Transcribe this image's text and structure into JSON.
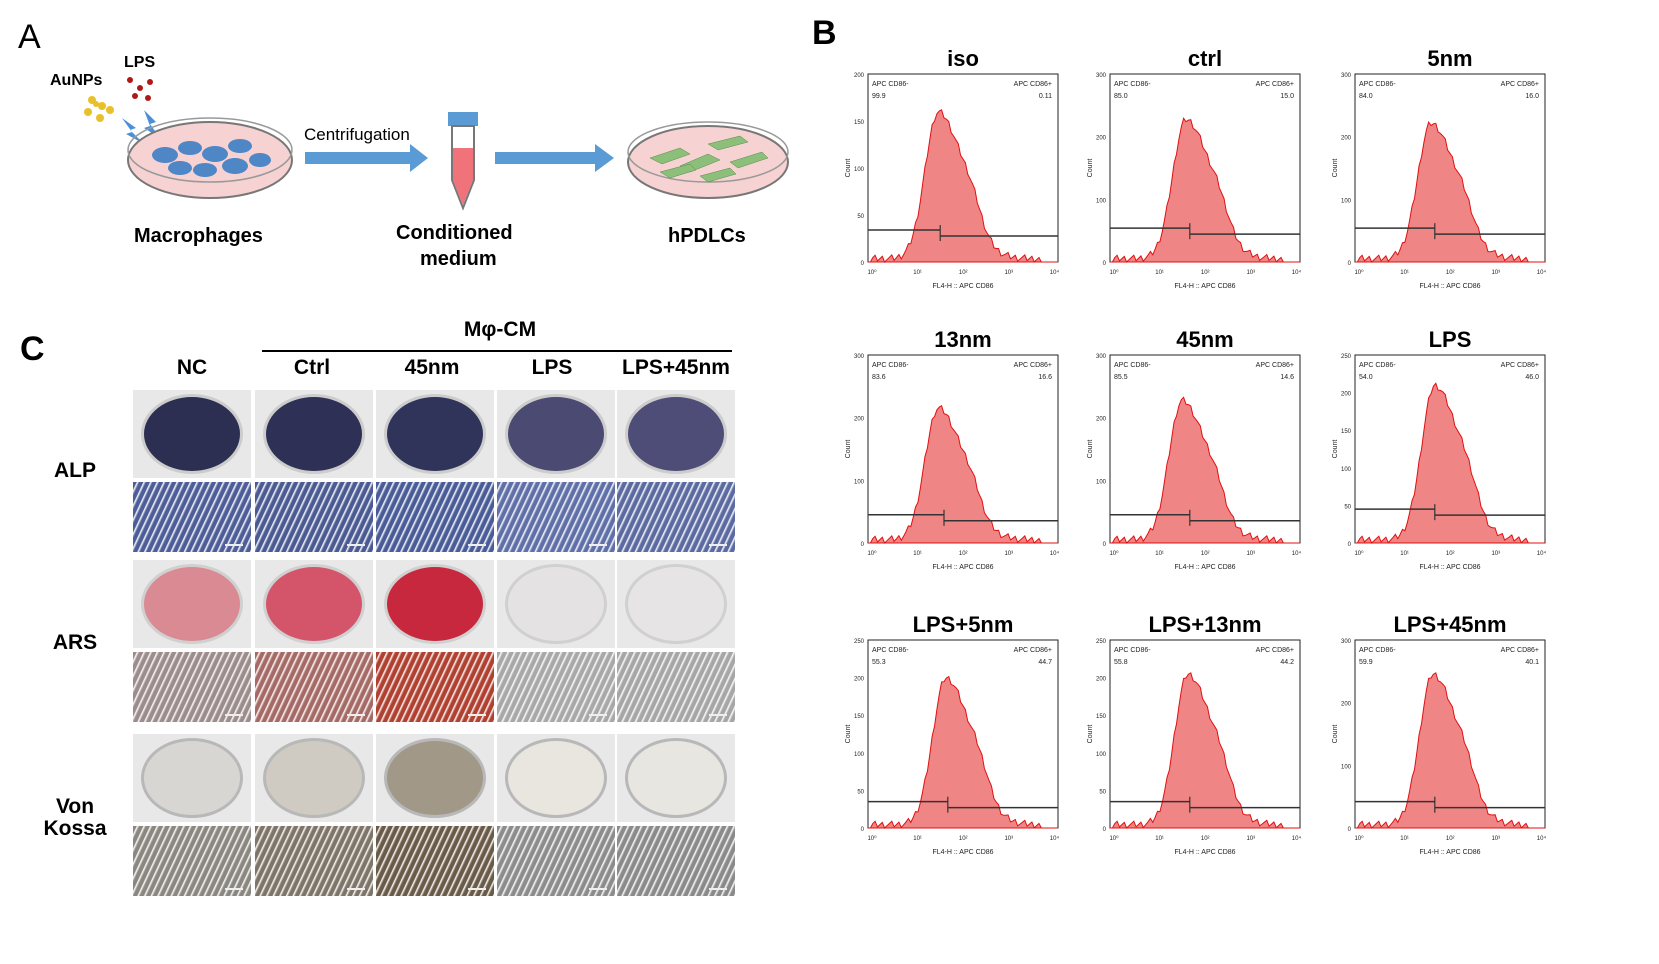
{
  "panel_a": {
    "letter": "A",
    "auNPs_label": "AuNPs",
    "lps_label": "LPS",
    "centrifugation_label": "Centrifugation",
    "macrophages_label": "Macrophages",
    "conditioned_label_line1": "Conditioned",
    "conditioned_label_line2": "medium",
    "hpdlcs_label": "hPDLCs"
  },
  "panel_b": {
    "letter": "B",
    "x_axis_label": "FL4-H :: APC CD86",
    "y_axis_label": "Count",
    "gate_left_label": "APC CD86-",
    "gate_right_label": "APC CD86+",
    "plots": [
      {
        "title": "iso",
        "left_pct": "99.9",
        "right_pct": "0.11",
        "ymax": 200,
        "yticks": [
          "0",
          "50",
          "100",
          "150",
          "200"
        ],
        "peak_x": 0.37,
        "peak_h": 0.78,
        "gate_x": 0.38,
        "gate_y": 0.17
      },
      {
        "title": "ctrl",
        "left_pct": "85.0",
        "right_pct": "15.0",
        "ymax": 300,
        "yticks": [
          "0",
          "100",
          "200",
          "300"
        ],
        "peak_x": 0.4,
        "peak_h": 0.74,
        "gate_x": 0.42,
        "gate_y": 0.18
      },
      {
        "title": "5nm",
        "left_pct": "84.0",
        "right_pct": "16.0",
        "ymax": 300,
        "yticks": [
          "0",
          "100",
          "200",
          "300"
        ],
        "peak_x": 0.4,
        "peak_h": 0.72,
        "gate_x": 0.42,
        "gate_y": 0.18
      },
      {
        "title": "13nm",
        "left_pct": "83.6",
        "right_pct": "16.6",
        "ymax": 300,
        "yticks": [
          "0",
          "100",
          "200",
          "300"
        ],
        "peak_x": 0.37,
        "peak_h": 0.7,
        "gate_x": 0.4,
        "gate_y": 0.15
      },
      {
        "title": "45nm",
        "left_pct": "85.5",
        "right_pct": "14.6",
        "ymax": 300,
        "yticks": [
          "0",
          "100",
          "200",
          "300"
        ],
        "peak_x": 0.38,
        "peak_h": 0.74,
        "gate_x": 0.42,
        "gate_y": 0.15
      },
      {
        "title": "LPS",
        "left_pct": "54.0",
        "right_pct": "46.0",
        "ymax": 250,
        "yticks": [
          "0",
          "50",
          "100",
          "150",
          "200",
          "250"
        ],
        "peak_x": 0.42,
        "peak_h": 0.82,
        "gate_x": 0.42,
        "gate_y": 0.18
      },
      {
        "title": "LPS+5nm",
        "left_pct": "55.3",
        "right_pct": "44.7",
        "ymax": 250,
        "yticks": [
          "0",
          "50",
          "100",
          "150",
          "200",
          "250"
        ],
        "peak_x": 0.41,
        "peak_h": 0.78,
        "gate_x": 0.42,
        "gate_y": 0.14
      },
      {
        "title": "LPS+13nm",
        "left_pct": "55.8",
        "right_pct": "44.2",
        "ymax": 250,
        "yticks": [
          "0",
          "50",
          "100",
          "150",
          "200",
          "250"
        ],
        "peak_x": 0.41,
        "peak_h": 0.8,
        "gate_x": 0.42,
        "gate_y": 0.14
      },
      {
        "title": "LPS+45nm",
        "left_pct": "59.9",
        "right_pct": "40.1",
        "ymax": 300,
        "yticks": [
          "0",
          "100",
          "200",
          "300"
        ],
        "peak_x": 0.41,
        "peak_h": 0.8,
        "gate_x": 0.42,
        "gate_y": 0.14
      }
    ]
  },
  "panel_c": {
    "letter": "C",
    "group_label": "Mφ-CM",
    "columns": [
      "NC",
      "Ctrl",
      "45nm",
      "LPS",
      "LPS+45nm"
    ],
    "rows": [
      {
        "label": "ALP"
      },
      {
        "label": "ARS"
      },
      {
        "label_line1": "Von",
        "label_line2": "Kossa"
      }
    ]
  },
  "colors": {
    "histogram_fill": "#f08585",
    "histogram_edge": "#e01010",
    "arrow_blue": "#5b9bd5",
    "dish_pink": "#f4cccc"
  }
}
